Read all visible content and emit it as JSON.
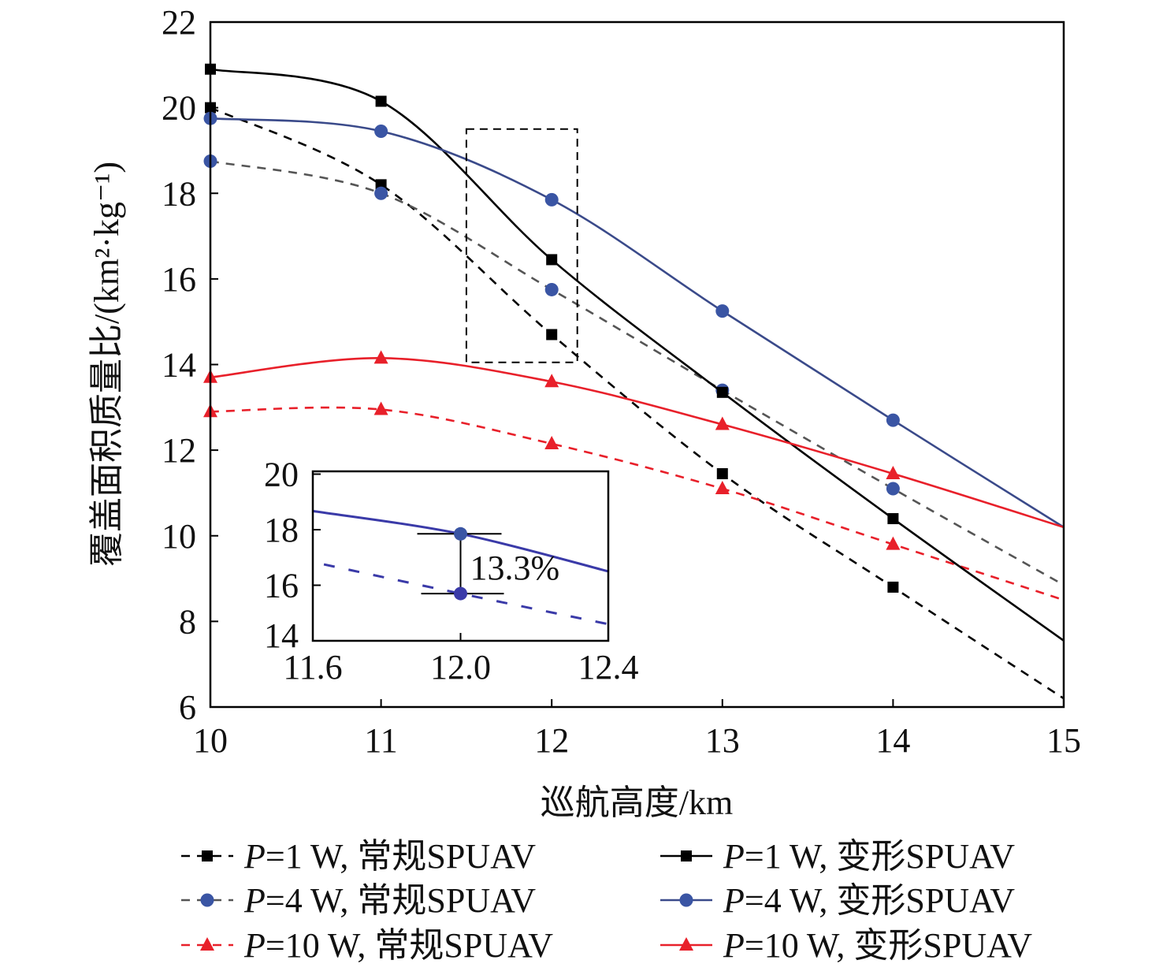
{
  "chart_data": {
    "type": "line",
    "title": "",
    "xlabel": "巡航高度/km",
    "ylabel": "覆盖面积质量比/(km²·kg⁻¹)",
    "xlim": [
      10,
      15
    ],
    "ylim": [
      6,
      22
    ],
    "xticks": [
      "10",
      "11",
      "12",
      "13",
      "14",
      "15"
    ],
    "yticks": [
      "6",
      "8",
      "10",
      "12",
      "14",
      "16",
      "18",
      "20",
      "22"
    ],
    "grid": false,
    "legend_placement": "bottom",
    "x": [
      10,
      11,
      12,
      13,
      14,
      15
    ],
    "series": [
      {
        "name": "P=1 W, 常规SPUAV",
        "p": "P",
        "rest": "=1 W, 常规SPUAV",
        "color": "#000000",
        "dash": true,
        "marker": "square",
        "values": [
          20.0,
          18.2,
          14.7,
          11.45,
          8.8,
          6.2
        ],
        "marked": [
          true,
          true,
          true,
          true,
          true,
          false
        ]
      },
      {
        "name": "P=4 W, 常规SPUAV",
        "p": "P",
        "rest": "=4 W, 常规SPUAV",
        "color": "#3a55a4",
        "linecolor": "#555555",
        "dash": true,
        "marker": "circle",
        "values": [
          18.75,
          18.0,
          15.75,
          13.4,
          11.1,
          8.85
        ],
        "marked": [
          true,
          true,
          true,
          true,
          true,
          false
        ]
      },
      {
        "name": "P=10 W, 常规SPUAV",
        "p": "P",
        "rest": "=10 W, 常规SPUAV",
        "color": "#e8202a",
        "dash": true,
        "marker": "triangle",
        "values": [
          12.9,
          12.95,
          12.15,
          11.1,
          9.8,
          8.5
        ],
        "marked": [
          true,
          true,
          true,
          true,
          true,
          false
        ]
      },
      {
        "name": "P=1 W, 变形SPUAV",
        "p": "P",
        "rest": "=1 W, 变形SPUAV",
        "color": "#000000",
        "dash": false,
        "marker": "square",
        "values": [
          20.9,
          20.15,
          16.45,
          13.35,
          10.4,
          7.55
        ],
        "marked": [
          true,
          true,
          true,
          true,
          true,
          false
        ]
      },
      {
        "name": "P=4 W, 变形SPUAV",
        "p": "P",
        "rest": "=4 W, 变形SPUAV",
        "color": "#3a55a4",
        "linecolor": "#3a4a8a",
        "dash": false,
        "marker": "circle",
        "values": [
          19.75,
          19.45,
          17.85,
          15.25,
          12.7,
          10.2
        ],
        "marked": [
          true,
          true,
          true,
          true,
          true,
          false
        ]
      },
      {
        "name": "P=10 W, 变形SPUAV",
        "p": "P",
        "rest": "=10 W, 变形SPUAV",
        "color": "#e8202a",
        "dash": false,
        "marker": "triangle",
        "values": [
          13.7,
          14.15,
          13.6,
          12.6,
          11.45,
          10.2
        ],
        "marked": [
          true,
          true,
          true,
          true,
          true,
          false
        ]
      }
    ],
    "highlight_box": {
      "x": [
        11.5,
        12.15
      ],
      "y": [
        14.05,
        19.5
      ]
    },
    "inset": {
      "xlim": [
        11.6,
        12.4
      ],
      "ylim": [
        14,
        20.1
      ],
      "xticks": [
        "11.6",
        "12.0",
        "12.4"
      ],
      "yticks": [
        "14",
        "16",
        "18",
        "20"
      ],
      "solid": {
        "x": [
          11.6,
          12.0,
          12.4
        ],
        "y": [
          18.67,
          17.85,
          16.5
        ],
        "color": "#3a3aa8"
      },
      "dashed": {
        "x": [
          11.63,
          12.0,
          12.4
        ],
        "y": [
          16.75,
          15.7,
          14.6
        ],
        "color": "#3a3aa8"
      },
      "annotation": "13.3%"
    }
  }
}
